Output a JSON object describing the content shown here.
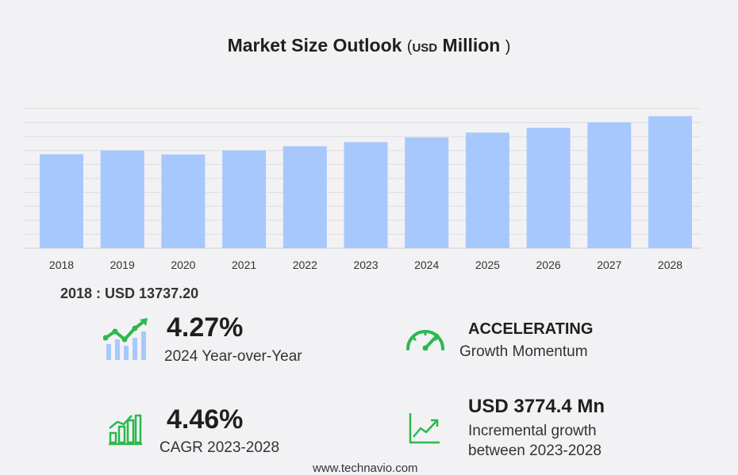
{
  "title": {
    "main": "Market Size Outlook",
    "paren_open": "(",
    "unit": "USD",
    "scale": "Million",
    "paren_close": ")"
  },
  "chart_data": {
    "type": "bar",
    "categories": [
      "2018",
      "2019",
      "2020",
      "2021",
      "2022",
      "2023",
      "2024",
      "2025",
      "2026",
      "2027",
      "2028"
    ],
    "values": [
      13737.2,
      14300,
      13700,
      14300,
      14900,
      15500,
      16200,
      16900,
      17600,
      18400,
      19300
    ],
    "ylim": [
      0,
      20400
    ],
    "grid": true,
    "bar_color": "#a7c8fc"
  },
  "base_year": {
    "text": "2018 : USD  13737.20"
  },
  "stats": {
    "yoy": {
      "value": "4.27%",
      "label": "2024 Year-over-Year"
    },
    "momentum": {
      "value": "ACCELERATING",
      "label": "Growth Momentum"
    },
    "cagr": {
      "value": "4.46%",
      "label": "CAGR 2023-2028"
    },
    "incremental": {
      "value": "USD  3774.4 Mn",
      "label_line1": "Incremental growth",
      "label_line2": "between 2023-2028"
    }
  },
  "source": "www.technavio.com",
  "icons": {
    "yoy": "growth-bars-icon",
    "momentum": "speedometer-icon",
    "cagr": "bar-chart-icon",
    "incremental": "trend-line-icon"
  },
  "colors": {
    "accent": "#2db84d",
    "bars": "#a7c8fc",
    "icon_bars": "#a7c8fc"
  }
}
